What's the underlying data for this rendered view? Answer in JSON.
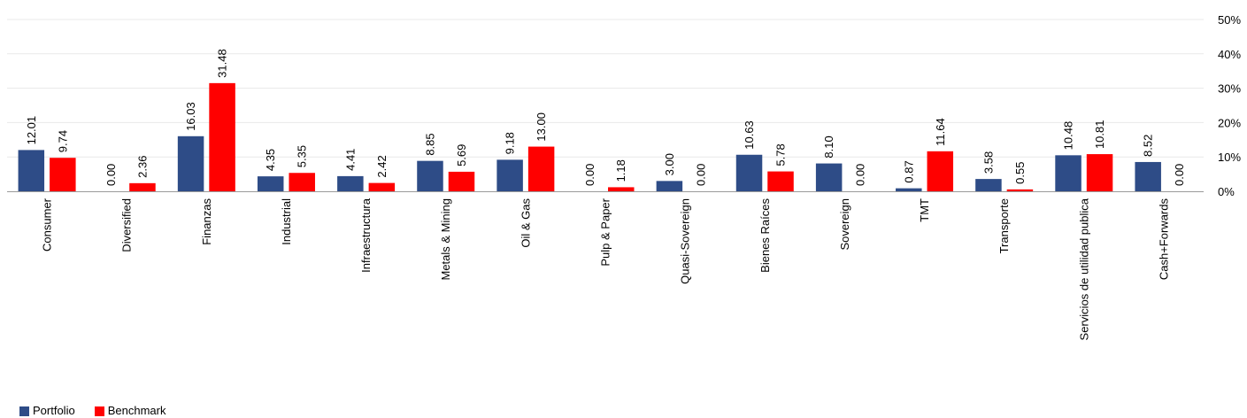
{
  "chart_data": {
    "type": "bar",
    "title": "",
    "xlabel": "",
    "ylabel": "",
    "ylim": [
      0,
      50
    ],
    "y_ticks": [
      "0%",
      "10%",
      "20%",
      "30%",
      "40%",
      "50%"
    ],
    "y_axis_position": "right",
    "grid": true,
    "legend": "bottom-left",
    "value_labels": "vertical",
    "categories": [
      "Consumer",
      "Diversified",
      "Finanzas",
      "Industrial",
      "Infraestructura",
      "Metals & Mining",
      "Oil & Gas",
      "Pulp & Paper",
      "Quasi-Sovereign",
      "Bienes Raíces",
      "Sovereign",
      "TMT",
      "Transporte",
      "Servicios de utilidad publica",
      "Cash+Forwards"
    ],
    "series": [
      {
        "name": "Portfolio",
        "color": "#2e4c87",
        "values": [
          12.01,
          0.0,
          16.03,
          4.35,
          4.41,
          8.85,
          9.18,
          0.0,
          3.0,
          10.63,
          8.1,
          0.87,
          3.58,
          10.48,
          8.52
        ],
        "labels": [
          "12.01",
          "0.00",
          "16.03",
          "4.35",
          "4.41",
          "8.85",
          "9.18",
          "0.00",
          "3.00",
          "10.63",
          "8.10",
          "0.87",
          "3.58",
          "10.48",
          "8.52"
        ]
      },
      {
        "name": "Benchmark",
        "color": "#ff0000",
        "values": [
          9.74,
          2.36,
          31.48,
          5.35,
          2.42,
          5.69,
          13.0,
          1.18,
          0.0,
          5.78,
          0.0,
          11.64,
          0.55,
          10.81,
          0.0
        ],
        "labels": [
          "9.74",
          "2.36",
          "31.48",
          "5.35",
          "2.42",
          "5.69",
          "13.00",
          "1.18",
          "0.00",
          "5.78",
          "0.00",
          "11.64",
          "0.55",
          "10.81",
          "0.00"
        ]
      }
    ]
  }
}
